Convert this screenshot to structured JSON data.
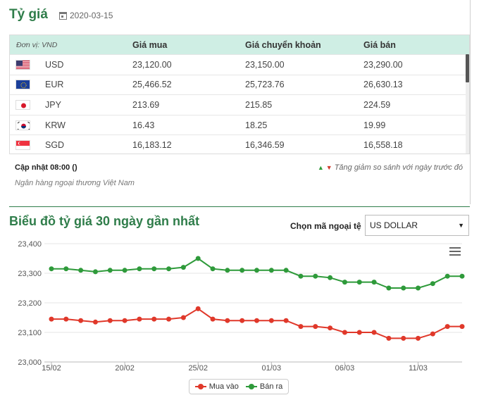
{
  "header": {
    "title": "Tỷ giá",
    "date": "2020-03-15"
  },
  "table": {
    "columns": [
      "Đơn vị: VND",
      "Giá mua",
      "Giá chuyển khoản",
      "Giá bán"
    ],
    "rows": [
      {
        "code": "USD",
        "flag": "flag-us-icon",
        "buy": "23,120.00",
        "transfer": "23,150.00",
        "sell": "23,290.00"
      },
      {
        "code": "EUR",
        "flag": "flag-eu-icon",
        "buy": "25,466.52",
        "transfer": "25,723.76",
        "sell": "26,630.13"
      },
      {
        "code": "JPY",
        "flag": "flag-jp-icon",
        "buy": "213.69",
        "transfer": "215.85",
        "sell": "224.59"
      },
      {
        "code": "KRW",
        "flag": "flag-kr-icon",
        "buy": "16.43",
        "transfer": "18.25",
        "sell": "19.99"
      },
      {
        "code": "SGD",
        "flag": "flag-sg-icon",
        "buy": "16,183.12",
        "transfer": "16,346.59",
        "sell": "16,558.18"
      }
    ]
  },
  "footer": {
    "update": "Cập nhật 08:00 ()",
    "change_note": "Tăng giảm so sánh với ngày trước đó",
    "bank": "Ngân hàng ngoại thương Việt Nam"
  },
  "chart_section": {
    "title": "Biểu đồ tỷ giá 30 ngày gần nhất",
    "picker_label": "Chọn mã ngoại tệ",
    "selected_currency": "US DOLLAR"
  },
  "colors": {
    "accent": "#2f7d4a",
    "buy": "#e0382a",
    "sell": "#2e9a3a",
    "header_bg": "#cfeee4"
  },
  "chart_data": {
    "type": "line",
    "x": [
      "15/02",
      "16/02",
      "17/02",
      "18/02",
      "19/02",
      "20/02",
      "21/02",
      "22/02",
      "23/02",
      "24/02",
      "25/02",
      "26/02",
      "27/02",
      "28/02",
      "29/02",
      "01/03",
      "02/03",
      "03/03",
      "04/03",
      "05/03",
      "06/03",
      "07/03",
      "08/03",
      "09/03",
      "10/03",
      "11/03",
      "12/03",
      "13/03",
      "14/03"
    ],
    "x_tick_labels": [
      "15/02",
      "20/02",
      "25/02",
      "01/03",
      "06/03",
      "11/03"
    ],
    "y_tick_labels": [
      "23,000",
      "23,100",
      "23,200",
      "23,300",
      "23,400"
    ],
    "ylim": [
      23000,
      23400
    ],
    "series": [
      {
        "name": "Mua vào",
        "color": "#e0382a",
        "values": [
          23145,
          23145,
          23140,
          23135,
          23140,
          23140,
          23145,
          23145,
          23145,
          23150,
          23180,
          23145,
          23140,
          23140,
          23140,
          23140,
          23140,
          23120,
          23120,
          23115,
          23100,
          23100,
          23100,
          23080,
          23080,
          23080,
          23095,
          23120,
          23120
        ]
      },
      {
        "name": "Bán ra",
        "color": "#2e9a3a",
        "values": [
          23315,
          23315,
          23310,
          23305,
          23310,
          23310,
          23315,
          23315,
          23315,
          23320,
          23350,
          23315,
          23310,
          23310,
          23310,
          23310,
          23310,
          23290,
          23290,
          23285,
          23270,
          23270,
          23270,
          23250,
          23250,
          23250,
          23265,
          23290,
          23290
        ]
      }
    ]
  }
}
